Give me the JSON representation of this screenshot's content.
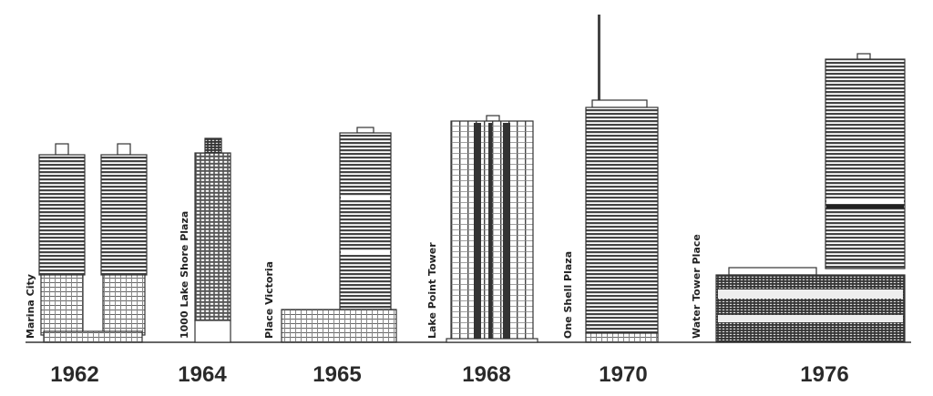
{
  "buildings": [
    {
      "name": "Marina City",
      "year": "1962"
    },
    {
      "name": "1000 Lake Shore Plaza",
      "year": "1964"
    },
    {
      "name": "Place Victoria",
      "year": "1965"
    },
    {
      "name": "Lake Point Tower",
      "year": "1968"
    },
    {
      "name": "One Shell Plaza",
      "year": "1970"
    },
    {
      "name": "Water Tower Place",
      "year": "1976"
    }
  ]
}
